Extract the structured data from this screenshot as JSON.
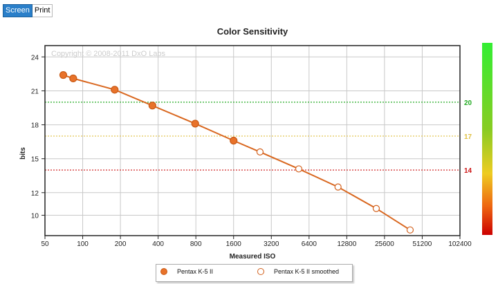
{
  "toolbar": {
    "screen_label": "Screen",
    "print_label": "Print"
  },
  "chart_data": {
    "type": "line",
    "title": "Color Sensitivity",
    "xlabel": "Measured ISO",
    "ylabel": "bits",
    "x_scale": "log2",
    "x_ticks": [
      50,
      100,
      200,
      400,
      800,
      1600,
      3200,
      6400,
      12800,
      25600,
      51200,
      102400
    ],
    "y_ticks": [
      10,
      12,
      15,
      18,
      21,
      24
    ],
    "xlim": [
      50,
      102400
    ],
    "ylim": [
      8.2,
      25
    ],
    "watermark": "Copyright © 2008-2011 DxO Labs",
    "reference_lines": [
      {
        "value": 20,
        "label": "20",
        "color": "#22aa22"
      },
      {
        "value": 17,
        "label": "17",
        "color": "#e0c040"
      },
      {
        "value": 14,
        "label": "14",
        "color": "#cc1111"
      }
    ],
    "series": [
      {
        "name": "Pentax K-5 II",
        "marker": "filled",
        "color": "#e8722a",
        "points": [
          [
            70,
            22.4
          ],
          [
            84,
            22.1
          ],
          [
            180,
            21.1
          ],
          [
            360,
            19.7
          ],
          [
            790,
            18.1
          ],
          [
            1600,
            16.6
          ]
        ]
      },
      {
        "name": "Pentax K-5 II smoothed",
        "marker": "hollow",
        "color": "#e8722a",
        "points": [
          [
            2600,
            15.6
          ],
          [
            5300,
            14.1
          ],
          [
            10900,
            12.5
          ],
          [
            22000,
            10.6
          ],
          [
            41000,
            8.7
          ]
        ]
      }
    ],
    "legend_position": "bottom",
    "grid": true
  }
}
